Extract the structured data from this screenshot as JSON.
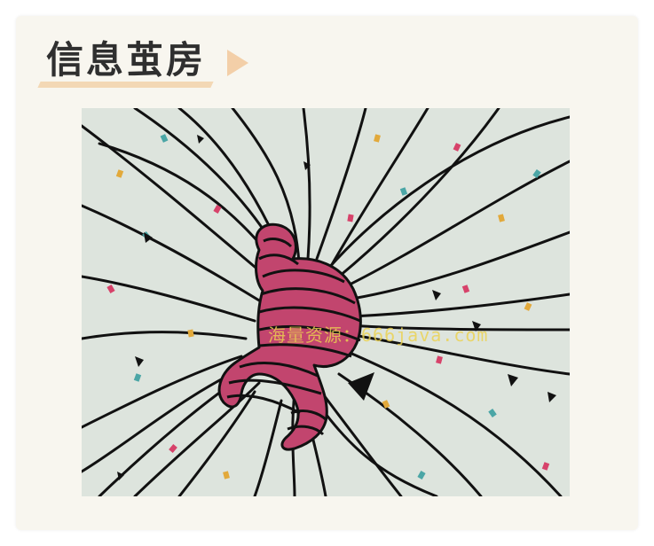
{
  "header": {
    "title": "信息茧房",
    "arrow_icon": "play-arrow-icon"
  },
  "illustration": {
    "subject": "person curled up tangled in lines",
    "watermark": "海量资源：666java.com"
  },
  "colors": {
    "card_background": "#f8f6ef",
    "title_accent": "#f3d8b5",
    "illustration_background": "#dde4dd",
    "figure_stripe": "#c2456e",
    "watermark": "#ecd250"
  }
}
